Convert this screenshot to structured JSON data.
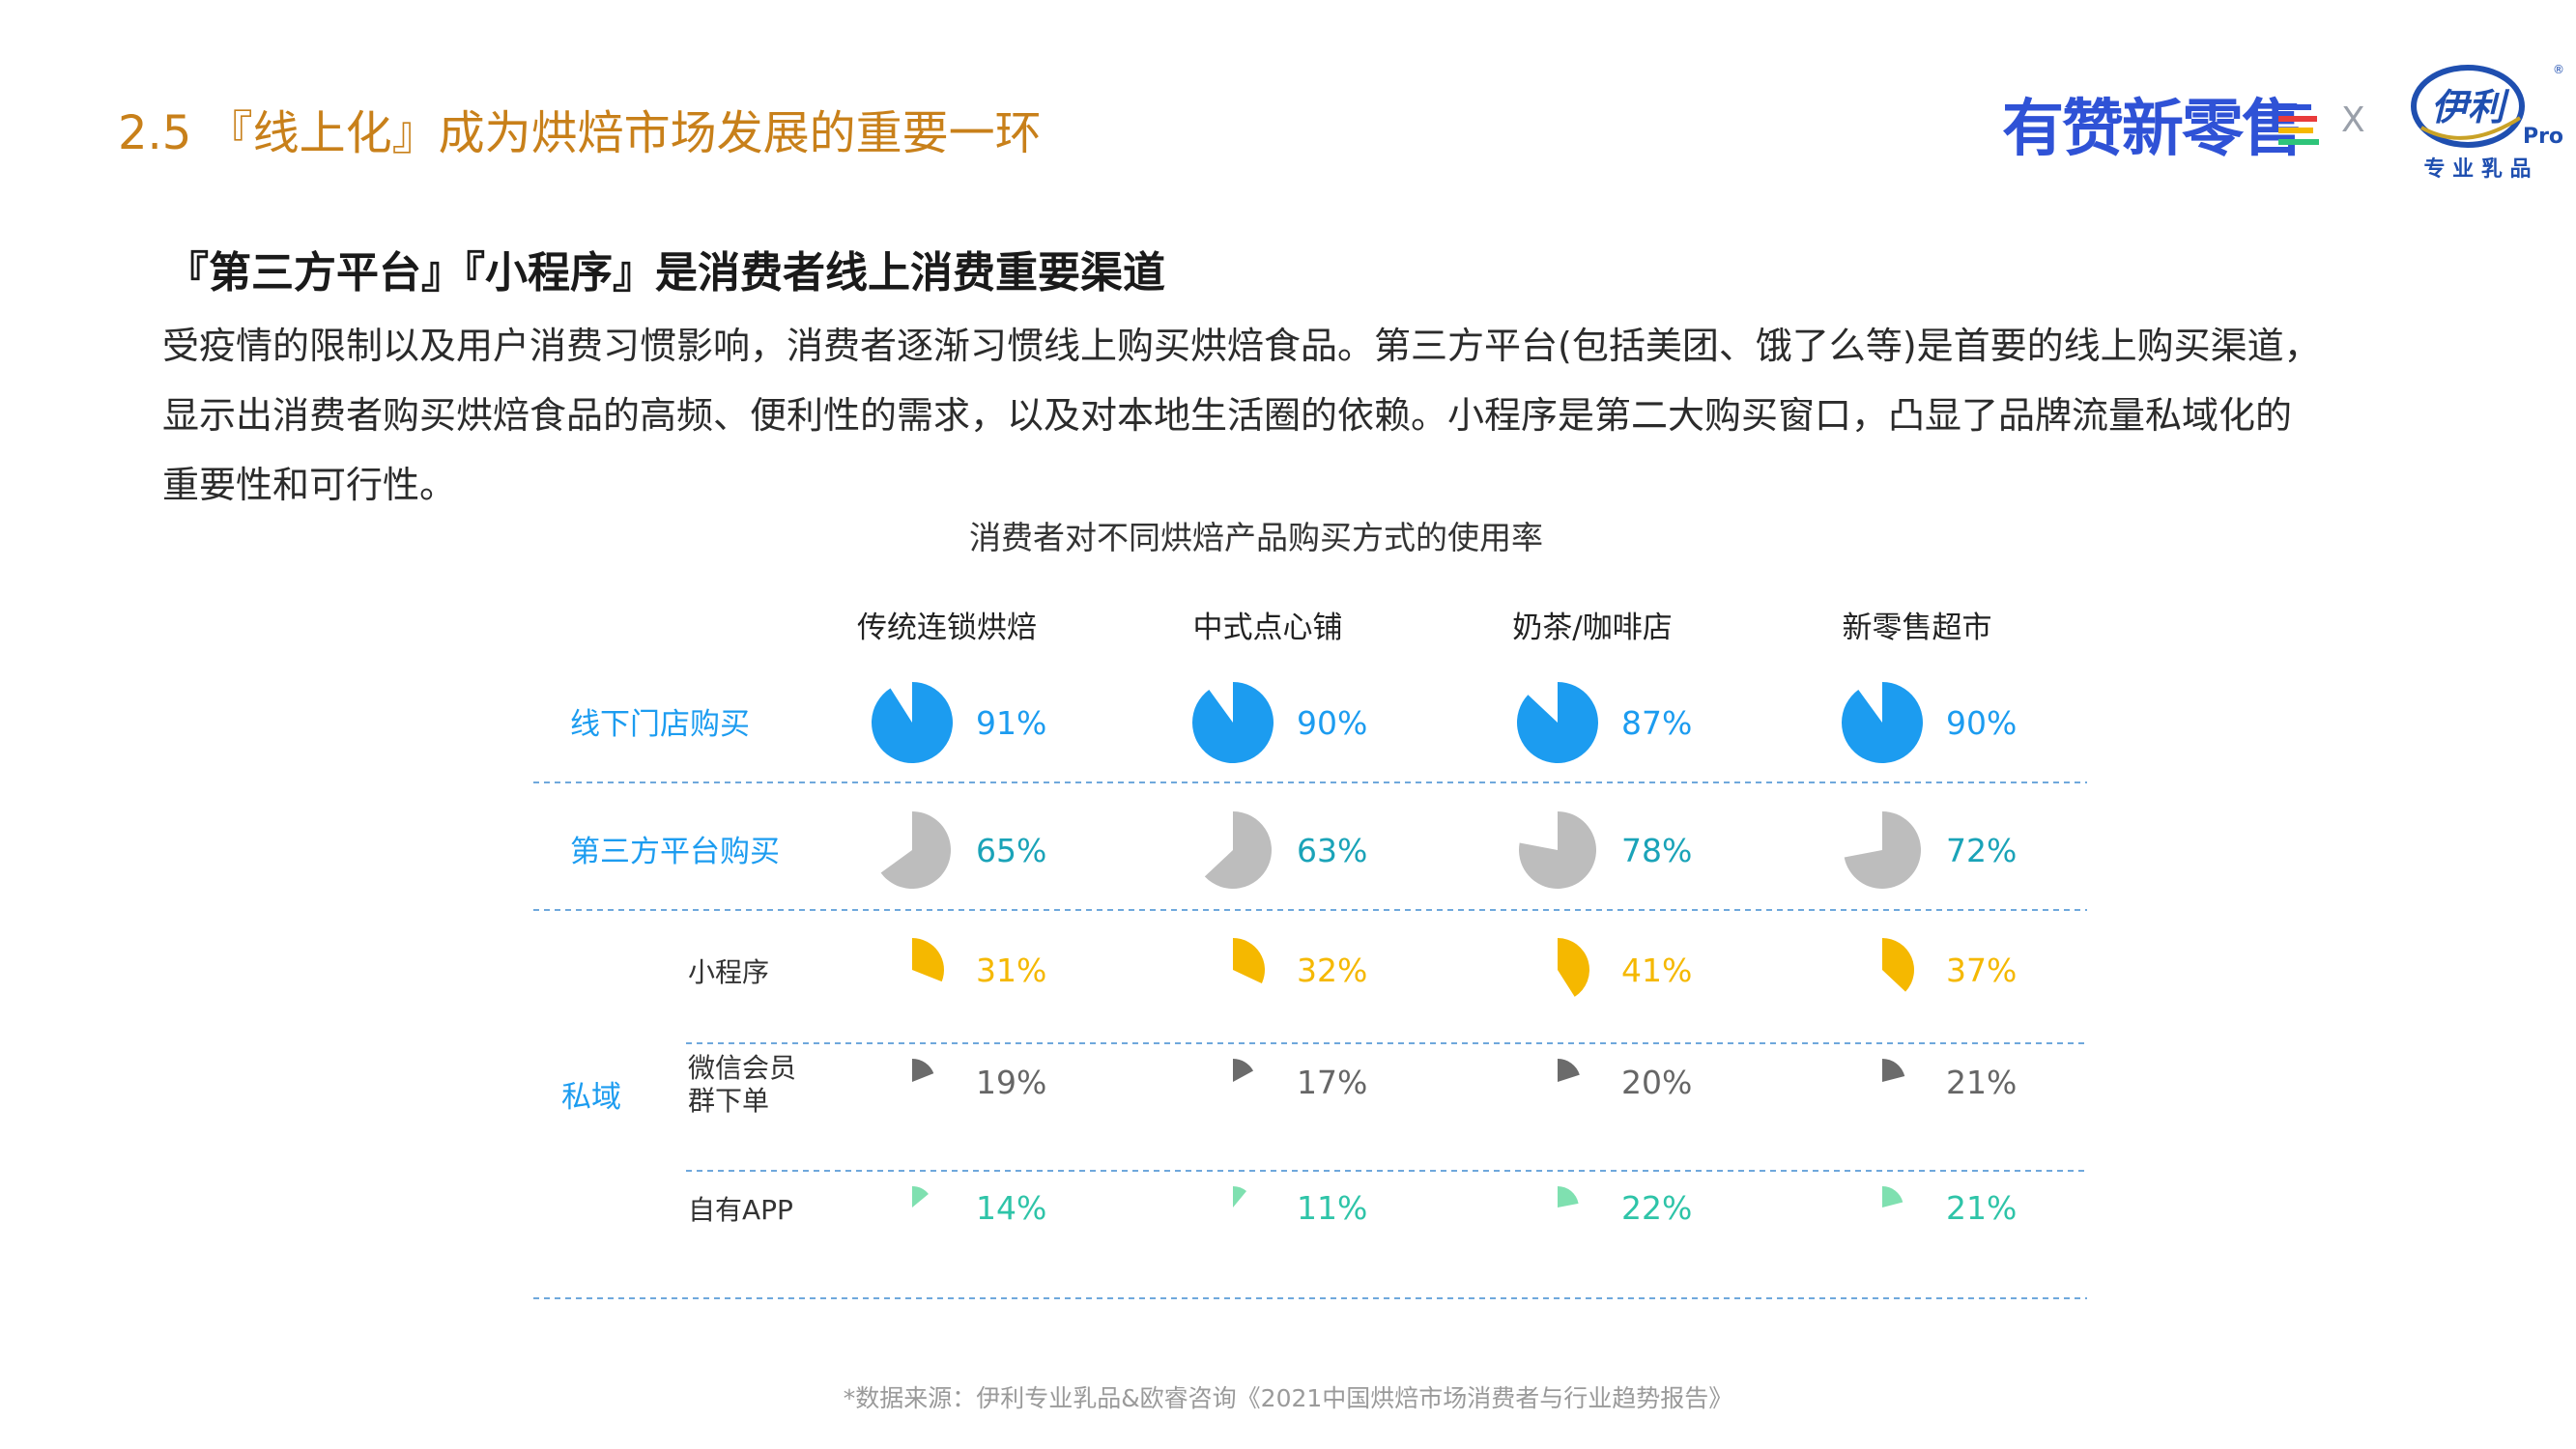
{
  "slide": {
    "title": "2.5 『线上化』成为烘焙市场发展的重要一环",
    "brand_wordmark": "有赞新零售",
    "brand_separator": "X",
    "partner_logo_text": "伊利",
    "partner_logo_sub": "Pro",
    "partner_tagline": "专 业 乳 品",
    "registered_mark": "®"
  },
  "section": {
    "heading": "『第三方平台』『小程序』是消费者线上消费重要渠道",
    "body_lines": [
      "受疫情的限制以及用户消费习惯影响，消费者逐渐习惯线上购买烘焙食品。第三方平台(包括美团、饿了么等)是首要的线上购买渠道，",
      "显示出消费者购买烘焙食品的高频、便利性的需求，以及对本地生活圈的依赖。小程序是第二大购买窗口，凸显了品牌流量私域化的",
      "重要性和可行性。"
    ]
  },
  "chart_data": {
    "type": "pie",
    "title": "消费者对不同烘焙产品购买方式的使用率",
    "columns": [
      "传统连锁烘焙",
      "中式点心铺",
      "奶茶/咖啡店",
      "新零售超市"
    ],
    "group_label": "私域",
    "rows": [
      {
        "label": "线下门店购买",
        "group": "",
        "color": "#1c9cf0",
        "label_color": "#1c9cf0",
        "value_color": "#1c9cf0",
        "values": [
          91,
          90,
          87,
          90
        ]
      },
      {
        "label": "第三方平台购买",
        "group": "",
        "color": "#bdbdbd",
        "label_color": "#1c9cf0",
        "value_color": "#1aa3b8",
        "values": [
          65,
          63,
          78,
          72
        ]
      },
      {
        "label": "小程序",
        "group": "私域",
        "color": "#f5b800",
        "label_color": "#333333",
        "value_color": "#f5b800",
        "values": [
          31,
          32,
          41,
          37
        ]
      },
      {
        "label": "微信会员群下单",
        "group": "私域",
        "color": "#6b6b6b",
        "label_color": "#333333",
        "value_color": "#666666",
        "values": [
          19,
          17,
          20,
          21
        ]
      },
      {
        "label": "自有APP",
        "group": "私域",
        "color": "#7fe0b0",
        "label_color": "#333333",
        "value_color": "#2ec4a8",
        "values": [
          14,
          11,
          22,
          21
        ]
      }
    ],
    "value_suffix": "%",
    "row_label_lines": {
      "微信会员群下单": [
        "微信会员",
        "群下单"
      ]
    }
  },
  "footer": {
    "source": "*数据来源：伊利专业乳品&欧睿咨询《2021中国烘焙市场消费者与行业趋势报告》"
  }
}
